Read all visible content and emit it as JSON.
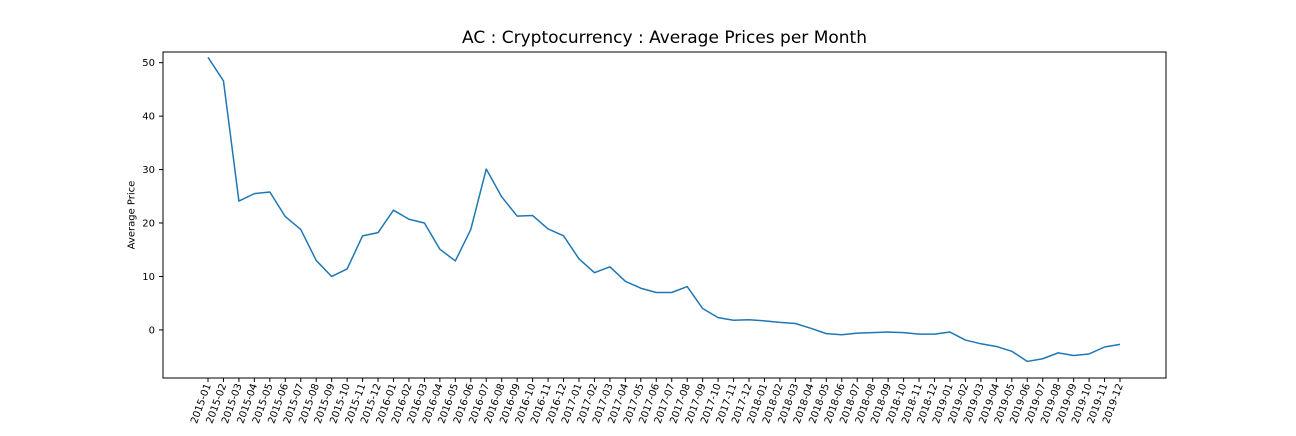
{
  "chart_data": {
    "type": "line",
    "title": "AC : Cryptocurrency : Average Prices per Month",
    "xlabel": "",
    "ylabel": "Average Price",
    "ylim": [
      -9,
      52
    ],
    "yticks": [
      0,
      10,
      20,
      30,
      40,
      50
    ],
    "grid": false,
    "line_color": "#1f77b4",
    "categories": [
      "2015-01",
      "2015-02",
      "2015-03",
      "2015-04",
      "2015-05",
      "2015-06",
      "2015-07",
      "2015-08",
      "2015-09",
      "2015-10",
      "2015-11",
      "2015-12",
      "2016-01",
      "2016-02",
      "2016-03",
      "2016-04",
      "2016-05",
      "2016-06",
      "2016-07",
      "2016-08",
      "2016-09",
      "2016-10",
      "2016-11",
      "2016-12",
      "2017-01",
      "2017-02",
      "2017-03",
      "2017-04",
      "2017-05",
      "2017-06",
      "2017-07",
      "2017-08",
      "2017-09",
      "2017-10",
      "2017-11",
      "2017-12",
      "2018-01",
      "2018-02",
      "2018-03",
      "2018-04",
      "2018-05",
      "2018-06",
      "2018-07",
      "2018-08",
      "2018-09",
      "2018-10",
      "2018-11",
      "2018-12",
      "2019-01",
      "2019-02",
      "2019-03",
      "2019-04",
      "2019-05",
      "2019-06",
      "2019-07",
      "2019-08",
      "2019-09",
      "2019-10",
      "2019-11",
      "2019-12"
    ],
    "values": [
      51.0,
      46.6,
      24.1,
      25.5,
      25.8,
      21.2,
      18.8,
      13.0,
      10.0,
      11.4,
      17.6,
      18.2,
      22.4,
      20.7,
      20.0,
      15.1,
      12.9,
      18.8,
      30.1,
      24.9,
      21.3,
      21.4,
      18.9,
      17.6,
      13.3,
      10.7,
      11.8,
      9.1,
      7.8,
      7.0,
      7.0,
      8.1,
      4.0,
      2.3,
      1.8,
      1.9,
      1.7,
      1.4,
      1.2,
      0.3,
      -0.7,
      -0.9,
      -0.6,
      -0.5,
      -0.4,
      -0.5,
      -0.8,
      -0.8,
      -0.4,
      -1.9,
      -2.6,
      -3.1,
      -4.0,
      -5.9,
      -5.4,
      -4.3,
      -4.8,
      -4.5,
      -3.2,
      -2.7
    ]
  }
}
